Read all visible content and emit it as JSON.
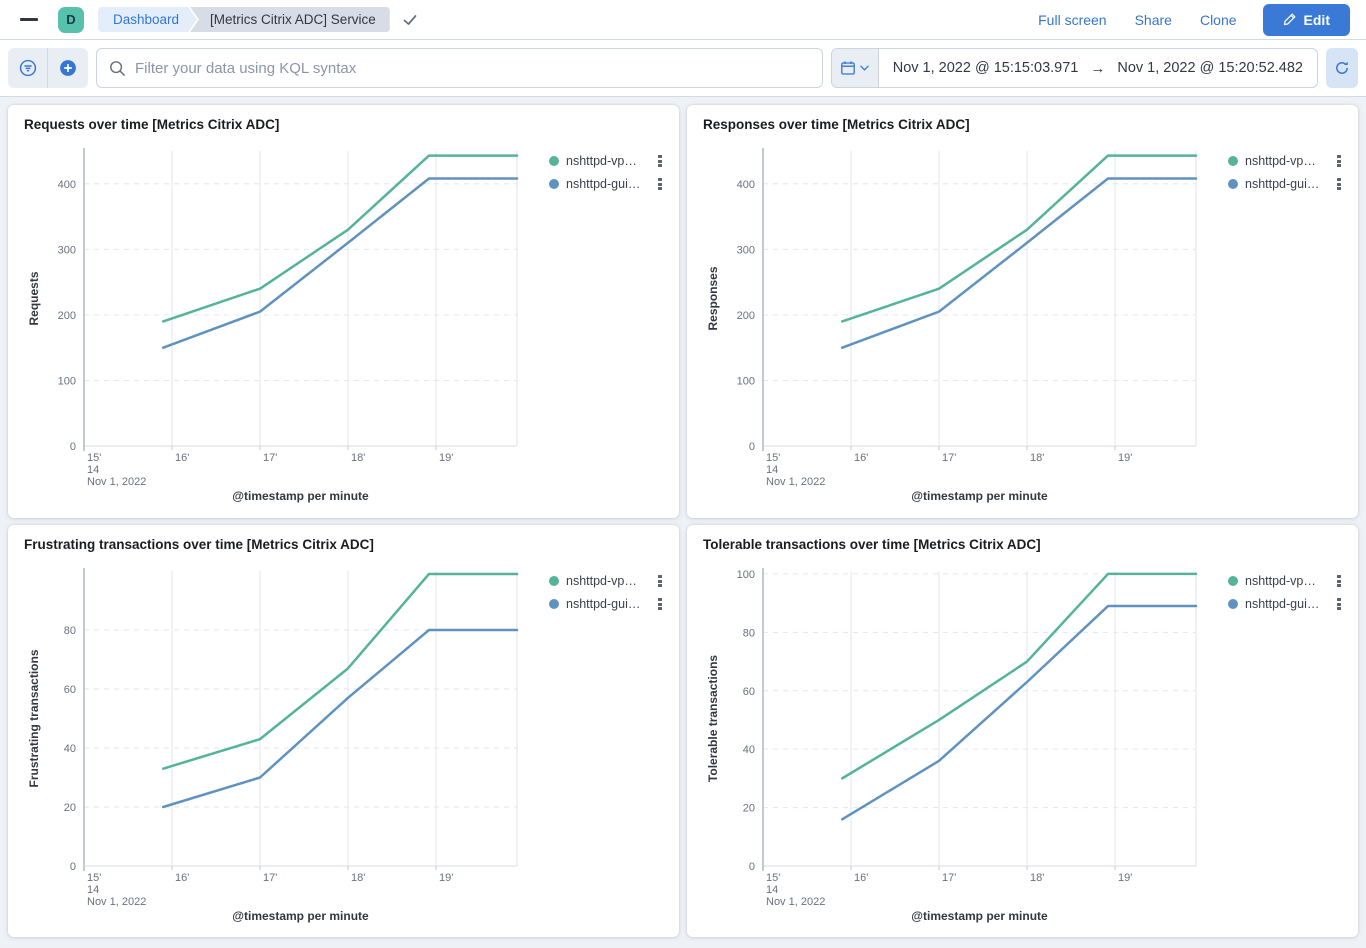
{
  "app": {
    "space_initial": "D"
  },
  "header": {
    "breadcrumbs": [
      {
        "label": "Dashboard"
      },
      {
        "label": "[Metrics Citrix ADC] Service"
      }
    ],
    "actions": {
      "full_screen": "Full screen",
      "share": "Share",
      "clone": "Clone",
      "edit": "Edit"
    }
  },
  "query_bar": {
    "filter_placeholder": "Filter your data using KQL syntax",
    "time_range": {
      "start": "Nov 1, 2022 @ 15:15:03.971",
      "arrow": "→",
      "end": "Nov 1, 2022 @ 15:20:52.482"
    }
  },
  "colors": {
    "accent_blue": "#3576d0",
    "page_bg": "#eef1f6",
    "series_green": "#54B399",
    "series_blue": "#6092C0"
  },
  "icons": {
    "menu": "hamburger-bars",
    "breadcrumb_check": "check",
    "edit": "pencil",
    "filter": "filter-in-circle",
    "add_filter": "plus-in-circle",
    "search": "magnifier",
    "calendar": "calendar",
    "calendar_caret": "chevron-down",
    "refresh": "circular-arrow",
    "legend_actions": "vertical-dots"
  },
  "chart_data": [
    {
      "type": "line",
      "title": "Requests over time [Metrics Citrix ADC]",
      "ylabel": "Requests",
      "xlabel": "@timestamp per minute",
      "yticks": [
        0,
        100,
        200,
        300,
        400
      ],
      "ymax": 450,
      "x_domain": [
        15,
        19.92
      ],
      "x_ticks": [
        {
          "m": 15,
          "label": "15'",
          "sub": [
            "14",
            "Nov 1, 2022"
          ]
        },
        {
          "m": 16,
          "label": "16'"
        },
        {
          "m": 17,
          "label": "17'"
        },
        {
          "m": 18,
          "label": "18'"
        },
        {
          "m": 19,
          "label": "19'"
        }
      ],
      "series": [
        {
          "label": "nshttpd-vp…",
          "color": "#54B399",
          "x": [
            15.9,
            17,
            18,
            18.92,
            19.92
          ],
          "values": [
            190,
            240,
            330,
            443,
            443
          ]
        },
        {
          "label": "nshttpd-gui…",
          "color": "#6092C0",
          "x": [
            15.9,
            17,
            18,
            18.92,
            19.92
          ],
          "values": [
            150,
            205,
            310,
            408,
            408
          ]
        }
      ],
      "legend_position": "right",
      "grid": true
    },
    {
      "type": "line",
      "title": "Responses over time [Metrics Citrix ADC]",
      "ylabel": "Responses",
      "xlabel": "@timestamp per minute",
      "yticks": [
        0,
        100,
        200,
        300,
        400
      ],
      "ymax": 450,
      "x_domain": [
        15,
        19.92
      ],
      "x_ticks": [
        {
          "m": 15,
          "label": "15'",
          "sub": [
            "14",
            "Nov 1, 2022"
          ]
        },
        {
          "m": 16,
          "label": "16'"
        },
        {
          "m": 17,
          "label": "17'"
        },
        {
          "m": 18,
          "label": "18'"
        },
        {
          "m": 19,
          "label": "19'"
        }
      ],
      "series": [
        {
          "label": "nshttpd-vp…",
          "color": "#54B399",
          "x": [
            15.9,
            17,
            18,
            18.92,
            19.92
          ],
          "values": [
            190,
            240,
            330,
            443,
            443
          ]
        },
        {
          "label": "nshttpd-gui…",
          "color": "#6092C0",
          "x": [
            15.9,
            17,
            18,
            18.92,
            19.92
          ],
          "values": [
            150,
            205,
            310,
            408,
            408
          ]
        }
      ],
      "legend_position": "right",
      "grid": true
    },
    {
      "type": "line",
      "title": "Frustrating transactions over time [Metrics Citrix ADC]",
      "ylabel": "Frustrating transactions",
      "xlabel": "@timestamp per minute",
      "yticks": [
        0,
        20,
        40,
        60,
        80
      ],
      "ymax": 100,
      "x_domain": [
        15,
        19.92
      ],
      "x_ticks": [
        {
          "m": 15,
          "label": "15'",
          "sub": [
            "14",
            "Nov 1, 2022"
          ]
        },
        {
          "m": 16,
          "label": "16'"
        },
        {
          "m": 17,
          "label": "17'"
        },
        {
          "m": 18,
          "label": "18'"
        },
        {
          "m": 19,
          "label": "19'"
        }
      ],
      "series": [
        {
          "label": "nshttpd-vp…",
          "color": "#54B399",
          "x": [
            15.9,
            17,
            18,
            18.92,
            19.92
          ],
          "values": [
            33,
            43,
            67,
            99,
            99
          ]
        },
        {
          "label": "nshttpd-gui…",
          "color": "#6092C0",
          "x": [
            15.9,
            17,
            18,
            18.92,
            19.92
          ],
          "values": [
            20,
            30,
            57,
            80,
            80
          ]
        }
      ],
      "legend_position": "right",
      "grid": true
    },
    {
      "type": "line",
      "title": "Tolerable transactions over time [Metrics Citrix ADC]",
      "ylabel": "Tolerable transactions",
      "xlabel": "@timestamp per minute",
      "yticks": [
        0,
        20,
        40,
        60,
        80,
        100
      ],
      "ymax": 101,
      "x_domain": [
        15,
        19.92
      ],
      "x_ticks": [
        {
          "m": 15,
          "label": "15'",
          "sub": [
            "14",
            "Nov 1, 2022"
          ]
        },
        {
          "m": 16,
          "label": "16'"
        },
        {
          "m": 17,
          "label": "17'"
        },
        {
          "m": 18,
          "label": "18'"
        },
        {
          "m": 19,
          "label": "19'"
        }
      ],
      "series": [
        {
          "label": "nshttpd-vp…",
          "color": "#54B399",
          "x": [
            15.9,
            17,
            18,
            18.92,
            19.92
          ],
          "values": [
            30,
            50,
            70,
            100,
            100
          ]
        },
        {
          "label": "nshttpd-gui…",
          "color": "#6092C0",
          "x": [
            15.9,
            17,
            18,
            18.92,
            19.92
          ],
          "values": [
            16,
            36,
            63,
            89,
            89
          ]
        }
      ],
      "legend_position": "right",
      "grid": true
    }
  ]
}
